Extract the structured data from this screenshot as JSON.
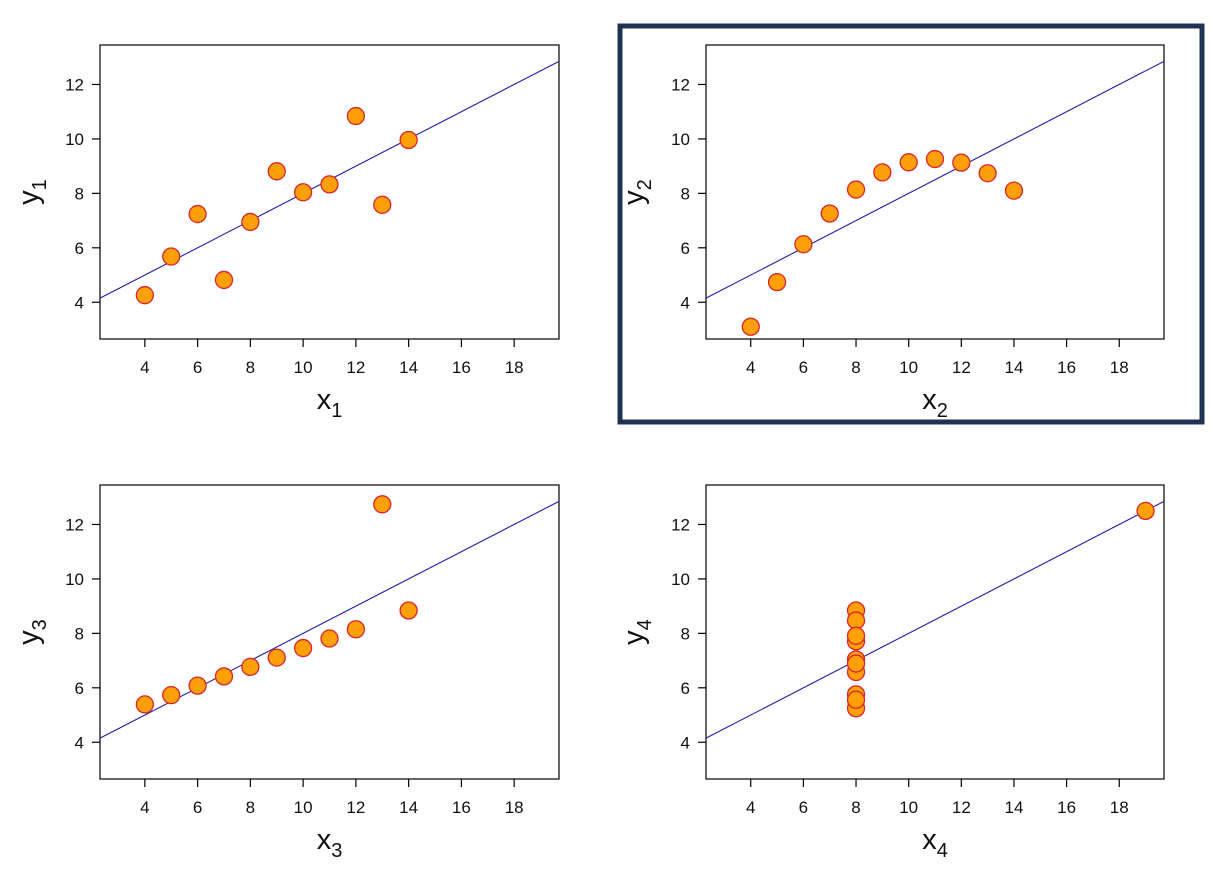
{
  "colors": {
    "point_fill": "#ff9f0a",
    "point_stroke": "#d8242a",
    "fit_line": "#1f1fa8",
    "axis": "#000000",
    "highlight": "#1e3354"
  },
  "highlighted_panel": 1,
  "chart_data": [
    {
      "type": "scatter",
      "xlabel": "x",
      "xlabel_sub": "1",
      "ylabel": "y",
      "ylabel_sub": "1",
      "xlim": [
        2.3,
        19.7
      ],
      "ylim": [
        2.65,
        13.45
      ],
      "xticks": [
        4,
        6,
        8,
        10,
        12,
        14,
        16,
        18
      ],
      "yticks": [
        4,
        6,
        8,
        10,
        12
      ],
      "x": [
        10,
        8,
        13,
        9,
        11,
        14,
        6,
        4,
        12,
        7,
        5
      ],
      "y": [
        8.04,
        6.95,
        7.58,
        8.81,
        8.33,
        9.96,
        7.24,
        4.26,
        10.84,
        4.82,
        5.68
      ],
      "fit": {
        "intercept": 3.0,
        "slope": 0.5
      },
      "grid": false
    },
    {
      "type": "scatter",
      "xlabel": "x",
      "xlabel_sub": "2",
      "ylabel": "y",
      "ylabel_sub": "2",
      "xlim": [
        2.3,
        19.7
      ],
      "ylim": [
        2.65,
        13.45
      ],
      "xticks": [
        4,
        6,
        8,
        10,
        12,
        14,
        16,
        18
      ],
      "yticks": [
        4,
        6,
        8,
        10,
        12
      ],
      "x": [
        10,
        8,
        13,
        9,
        11,
        14,
        6,
        4,
        12,
        7,
        5
      ],
      "y": [
        9.14,
        8.14,
        8.74,
        8.77,
        9.26,
        8.1,
        6.13,
        3.1,
        9.13,
        7.26,
        4.74
      ],
      "fit": {
        "intercept": 3.0,
        "slope": 0.5
      },
      "grid": false
    },
    {
      "type": "scatter",
      "xlabel": "x",
      "xlabel_sub": "3",
      "ylabel": "y",
      "ylabel_sub": "3",
      "xlim": [
        2.3,
        19.7
      ],
      "ylim": [
        2.65,
        13.45
      ],
      "xticks": [
        4,
        6,
        8,
        10,
        12,
        14,
        16,
        18
      ],
      "yticks": [
        4,
        6,
        8,
        10,
        12
      ],
      "x": [
        10,
        8,
        13,
        9,
        11,
        14,
        6,
        4,
        12,
        7,
        5
      ],
      "y": [
        7.46,
        6.77,
        12.74,
        7.11,
        7.81,
        8.84,
        6.08,
        5.39,
        8.15,
        6.42,
        5.73
      ],
      "fit": {
        "intercept": 3.0,
        "slope": 0.5
      },
      "grid": false
    },
    {
      "type": "scatter",
      "xlabel": "x",
      "xlabel_sub": "4",
      "ylabel": "y",
      "ylabel_sub": "4",
      "xlim": [
        2.3,
        19.7
      ],
      "ylim": [
        2.65,
        13.45
      ],
      "xticks": [
        4,
        6,
        8,
        10,
        12,
        14,
        16,
        18
      ],
      "yticks": [
        4,
        6,
        8,
        10,
        12
      ],
      "x": [
        8,
        8,
        8,
        8,
        8,
        8,
        8,
        19,
        8,
        8,
        8
      ],
      "y": [
        6.58,
        5.76,
        7.71,
        8.84,
        8.47,
        7.04,
        5.25,
        12.5,
        5.56,
        7.91,
        6.89
      ],
      "fit": {
        "intercept": 3.0,
        "slope": 0.5
      },
      "grid": false
    }
  ]
}
